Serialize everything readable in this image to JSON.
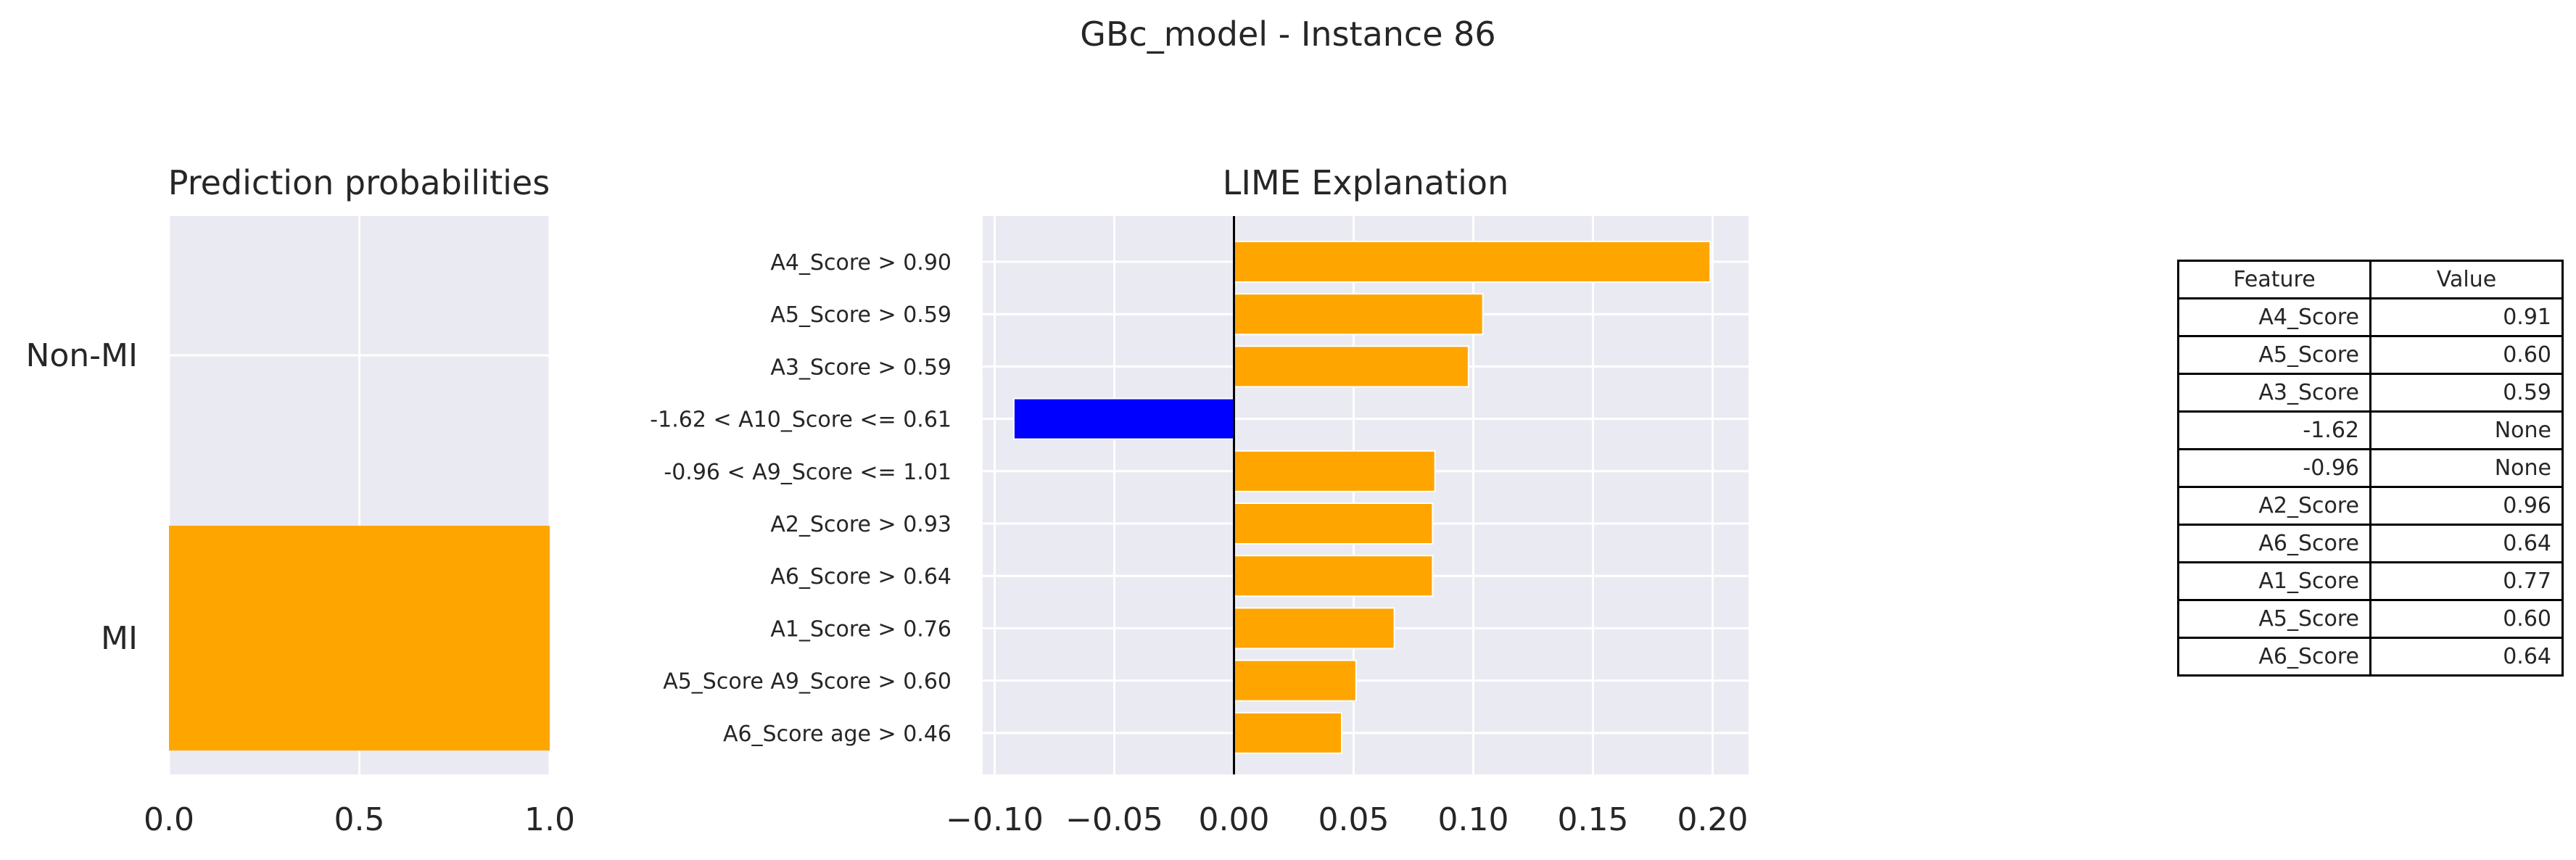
{
  "figure": {
    "title": "GBc_model - Instance 86"
  },
  "colors": {
    "positive": "#FFA500",
    "negative": "#0000FF",
    "panel_bg": "#EAEAF2",
    "grid": "#FFFFFF",
    "zero_line": "#000000"
  },
  "chart_data": [
    {
      "type": "bar",
      "orientation": "horizontal",
      "title": "Prediction probabilities",
      "categories": [
        "Non-MI",
        "MI"
      ],
      "values": [
        0.0,
        1.0
      ],
      "xlim": [
        0,
        1
      ],
      "xticks": [
        "0.0",
        "0.5",
        "1.0"
      ],
      "grid": true,
      "bar_colors": [
        "#FFA500",
        "#FFA500"
      ]
    },
    {
      "type": "bar",
      "orientation": "horizontal",
      "title": "LIME Explanation",
      "categories": [
        "A4_Score > 0.90",
        "A5_Score > 0.59",
        "A3_Score > 0.59",
        "-1.62 < A10_Score <= 0.61",
        "-0.96 < A9_Score <= 1.01",
        "A2_Score > 0.93",
        "A6_Score > 0.64",
        "A1_Score > 0.76",
        "A5_Score A9_Score > 0.60",
        "A6_Score age > 0.46"
      ],
      "values": [
        0.199,
        0.104,
        0.098,
        -0.092,
        0.084,
        0.083,
        0.083,
        0.067,
        0.051,
        0.045
      ],
      "xlim": [
        -0.105,
        0.215
      ],
      "xticks": [
        "−0.10",
        "−0.05",
        "0.00",
        "0.05",
        "0.10",
        "0.15",
        "0.20"
      ],
      "xtick_values": [
        -0.1,
        -0.05,
        0,
        0.05,
        0.1,
        0.15,
        0.2
      ],
      "grid": true
    },
    {
      "type": "table",
      "columns": [
        "Feature",
        "Value"
      ],
      "rows": [
        [
          "A4_Score",
          "0.91"
        ],
        [
          "A5_Score",
          "0.60"
        ],
        [
          "A3_Score",
          "0.59"
        ],
        [
          "-1.62",
          "None"
        ],
        [
          "-0.96",
          "None"
        ],
        [
          "A2_Score",
          "0.96"
        ],
        [
          "A6_Score",
          "0.64"
        ],
        [
          "A1_Score",
          "0.77"
        ],
        [
          "A5_Score",
          "0.60"
        ],
        [
          "A6_Score",
          "0.64"
        ]
      ]
    }
  ]
}
